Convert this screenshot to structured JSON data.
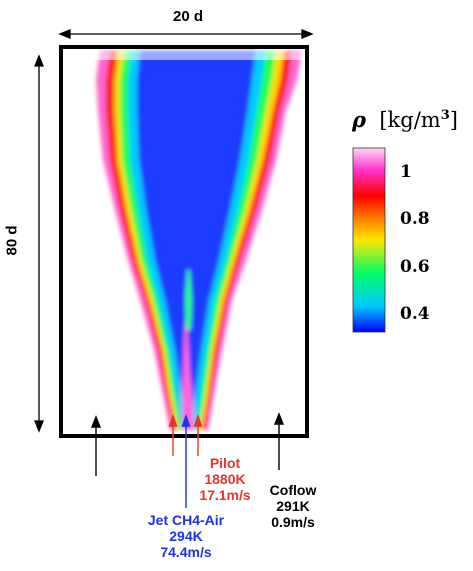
{
  "dimensions": {
    "width_label": "20 d",
    "height_label": "80 d"
  },
  "colorbar": {
    "symbol": "ρ",
    "unit": "[kg/m",
    "unit_power": "3",
    "unit_close": "]",
    "ticks": [
      {
        "label": "1",
        "value": 1.0
      },
      {
        "label": "0.8",
        "value": 0.8
      },
      {
        "label": "0.6",
        "value": 0.6
      },
      {
        "label": "0.4",
        "value": 0.4
      }
    ],
    "colors": [
      "#0000ff",
      "#00c8ff",
      "#00ff66",
      "#ffe600",
      "#ff7a00",
      "#ff0000",
      "#ff33cc",
      "#ffd6f5"
    ]
  },
  "streams": {
    "pilot": {
      "name": "Pilot",
      "temperature": "1880K",
      "velocity": "17.1m/s",
      "color": "#e8352e"
    },
    "jet": {
      "name": "Jet CH4-Air",
      "temperature": "294K",
      "velocity": "74.4m/s",
      "color": "#1f33e6"
    },
    "coflow": {
      "name": "Coflow",
      "temperature": "291K",
      "velocity": "0.9m/s",
      "color": "#000000"
    }
  }
}
